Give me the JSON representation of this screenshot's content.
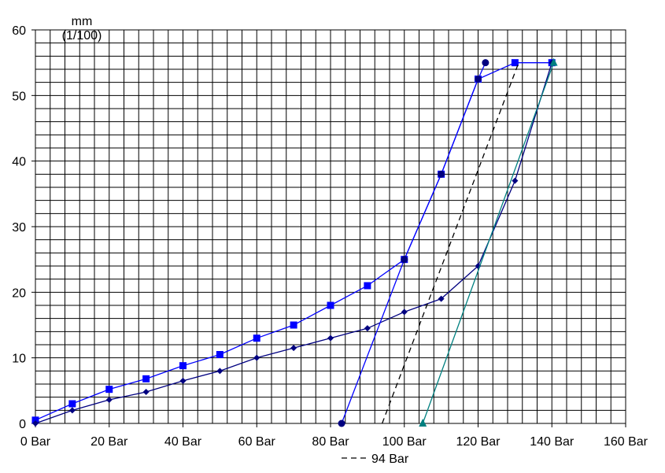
{
  "chart_data": {
    "type": "line",
    "ylabel_lines": [
      "mm",
      "(1/100)"
    ],
    "xlim": [
      0,
      160
    ],
    "ylim": [
      0,
      60
    ],
    "x_ticks": [
      {
        "value": 0,
        "label": "0 Bar"
      },
      {
        "value": 20,
        "label": "20 Bar"
      },
      {
        "value": 40,
        "label": "40 Bar"
      },
      {
        "value": 60,
        "label": "60 Bar"
      },
      {
        "value": 80,
        "label": "80 Bar"
      },
      {
        "value": 100,
        "label": "100 Bar"
      },
      {
        "value": 120,
        "label": "120 Bar"
      },
      {
        "value": 140,
        "label": "140 Bar"
      },
      {
        "value": 160,
        "label": "160 Bar"
      }
    ],
    "y_ticks": [
      {
        "value": 0,
        "label": "0"
      },
      {
        "value": 10,
        "label": "10"
      },
      {
        "value": 20,
        "label": "20"
      },
      {
        "value": 30,
        "label": "30"
      },
      {
        "value": 40,
        "label": "40"
      },
      {
        "value": 50,
        "label": "50"
      },
      {
        "value": 60,
        "label": "60"
      }
    ],
    "grid": {
      "x_step": 4,
      "y_step": 2,
      "on": true
    },
    "series": [
      {
        "marker": "square",
        "color": "#0000ff",
        "x": [
          0,
          10,
          20,
          30,
          40,
          50,
          60,
          70,
          80,
          90,
          100,
          110,
          120,
          130,
          140
        ],
        "y": [
          0.5,
          3,
          5.2,
          6.8,
          8.8,
          10.5,
          13,
          15,
          18,
          21,
          25,
          38,
          52.5,
          55,
          55
        ]
      },
      {
        "marker": "diamond",
        "color": "#000080",
        "x": [
          0,
          10,
          20,
          30,
          40,
          50,
          60,
          70,
          80,
          90,
          100,
          110,
          120,
          130,
          140
        ],
        "y": [
          0,
          2,
          3.6,
          4.8,
          6.5,
          8,
          10,
          11.5,
          13,
          14.5,
          17,
          19,
          24,
          37,
          55
        ]
      },
      {
        "marker": "circle",
        "color": "#000080",
        "line_color": "#0000ff",
        "x": [
          83,
          100,
          110,
          120,
          122
        ],
        "y": [
          0,
          25,
          38,
          52.5,
          55
        ]
      },
      {
        "marker": "triangle",
        "color": "#008080",
        "x": [
          105,
          140.5
        ],
        "y": [
          0,
          55
        ]
      },
      {
        "name": "94 Bar",
        "marker": "none",
        "color": "#000000",
        "dashed": true,
        "x": [
          94,
          131
        ],
        "y": [
          0,
          55
        ]
      }
    ],
    "legend": {
      "placement": "bottom",
      "label": "94 Bar"
    }
  }
}
